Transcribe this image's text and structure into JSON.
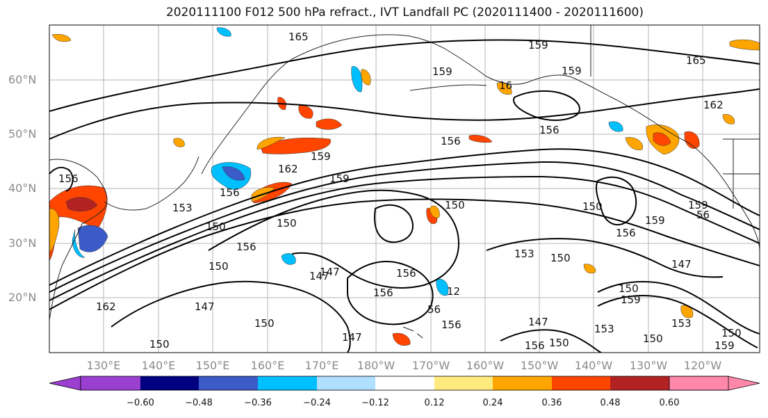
{
  "title": "2020111100 F012 500 hPa refract., IVT Landfall PC (2020111400 - 2020111600)",
  "lat_labels": [
    "60°N",
    "50°N",
    "40°N",
    "30°N",
    "20°N"
  ],
  "lon_labels": [
    "130°E",
    "140°E",
    "150°E",
    "160°E",
    "170°E",
    "180°W",
    "170°W",
    "160°W",
    "150°W",
    "140°W",
    "130°W",
    "120°W"
  ],
  "colorbar": {
    "colors": [
      "#9b3fd1",
      "#000080",
      "#3a5bc8",
      "#00bfff",
      "#b0e0ff",
      "#ffffff",
      "#ffea80",
      "#ffa500",
      "#ff4500",
      "#b22222",
      "#ff88aa"
    ],
    "tick_labels": [
      "−0.60",
      "−0.48",
      "−0.36",
      "−0.24",
      "−0.12",
      "0.12",
      "0.24",
      "0.36",
      "0.48",
      "0.60"
    ]
  },
  "contour_labels": [
    "165",
    "159",
    "159",
    "159",
    "165",
    "16",
    "156",
    "156",
    "162",
    "159",
    "162",
    "156",
    "159",
    "159",
    "156",
    "153",
    "150",
    "150",
    "150",
    "156",
    "150",
    "156",
    "159",
    "56",
    "153",
    "150",
    "147",
    "147",
    "150",
    "147",
    "156",
    "156",
    "12",
    "147",
    "156",
    "159",
    "153",
    "150",
    "147",
    "150",
    "150",
    "156",
    "159",
    "150",
    "153",
    "150",
    "162",
    "147",
    "150",
    "56"
  ]
}
